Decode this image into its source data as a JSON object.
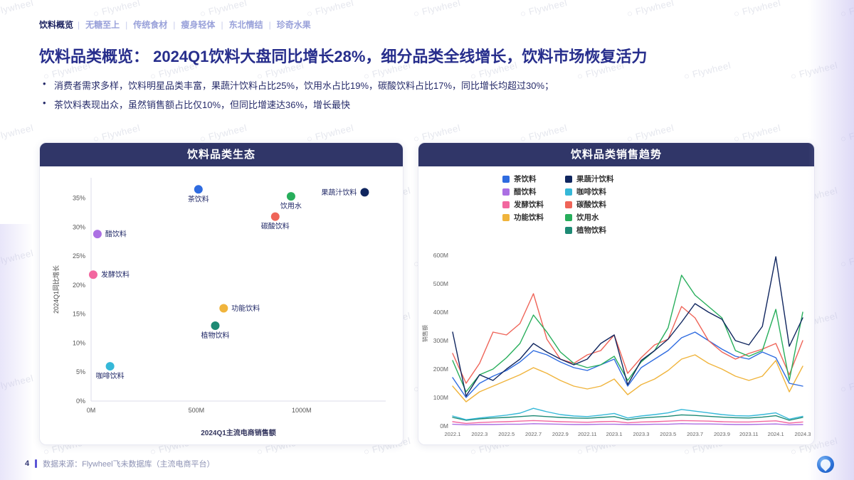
{
  "nav": {
    "active": "饮料概览",
    "items": [
      "无糖至上",
      "传统食材",
      "瘦身轻体",
      "东北情结",
      "珍奇水果"
    ]
  },
  "title": "饮料品类概览： 2024Q1饮料大盘同比增长28%，细分品类全线增长，饮料市场恢复活力",
  "bullets": [
    "消费者需求多样，饮料明星品类丰富，果蔬汁饮料占比25%，饮用水占比19%，碳酸饮料占比17%，同比增长均超过30%；",
    "茶饮料表现出众，虽然销售额占比仅10%，但同比增速达36%，增长最快"
  ],
  "watermark": "Flywheel",
  "footer": {
    "page": "4",
    "source": "数据来源：Flywheel飞未数据库（主流电商平台）"
  },
  "chart_data": [
    {
      "type": "scatter",
      "title": "饮料品类生态",
      "xlabel": "2024Q1主流电商销售额",
      "ylabel": "2024Q1同比增长",
      "xlim": [
        0,
        1400
      ],
      "ylim": [
        0,
        38.5
      ],
      "x_ticks": [
        "0M",
        "500M",
        "1000M"
      ],
      "x_tick_values": [
        0,
        500,
        1000
      ],
      "y_ticks": [
        "0%",
        "5%",
        "10%",
        "15%",
        "20%",
        "25%",
        "30%",
        "35%"
      ],
      "y_tick_values": [
        0,
        5,
        10,
        15,
        20,
        25,
        30,
        35
      ],
      "points": [
        {
          "name": "茶饮料",
          "x": 510,
          "y": 36.5,
          "color": "#2e6be0",
          "label_pos": "below"
        },
        {
          "name": "果蔬汁饮料",
          "x": 1300,
          "y": 36.0,
          "color": "#10265f",
          "label_pos": "left"
        },
        {
          "name": "饮用水",
          "x": 950,
          "y": 35.3,
          "color": "#27ae5b",
          "label_pos": "below"
        },
        {
          "name": "碳酸饮料",
          "x": 875,
          "y": 31.8,
          "color": "#ef6458",
          "label_pos": "below"
        },
        {
          "name": "醋饮料",
          "x": 30,
          "y": 28.8,
          "color": "#ab6fe3",
          "label_pos": "right"
        },
        {
          "name": "发酵饮料",
          "x": 10,
          "y": 21.8,
          "color": "#f2679f",
          "label_pos": "right"
        },
        {
          "name": "功能饮料",
          "x": 630,
          "y": 16.0,
          "color": "#f0b43c",
          "label_pos": "right"
        },
        {
          "name": "植物饮料",
          "x": 590,
          "y": 13.0,
          "color": "#1d8a74",
          "label_pos": "below"
        },
        {
          "name": "咖啡饮料",
          "x": 90,
          "y": 6.0,
          "color": "#35b8d8",
          "label_pos": "below"
        }
      ]
    },
    {
      "type": "line",
      "title": "饮料品类销售趋势",
      "ylabel": "销售额",
      "ylim": [
        0,
        650
      ],
      "y_ticks": [
        "0M",
        "100M",
        "200M",
        "300M",
        "400M",
        "500M",
        "600M"
      ],
      "y_tick_values": [
        0,
        100,
        200,
        300,
        400,
        500,
        600
      ],
      "x_tick_step": 2,
      "x": [
        "2022.1",
        "2022.2",
        "2022.3",
        "2022.4",
        "2022.5",
        "2022.6",
        "2022.7",
        "2022.8",
        "2022.9",
        "2022.10",
        "2022.11",
        "2022.12",
        "2023.1",
        "2023.2",
        "2023.3",
        "2023.4",
        "2023.5",
        "2023.6",
        "2023.7",
        "2023.8",
        "2023.9",
        "2023.10",
        "2023.11",
        "2023.12",
        "2024.1",
        "2024.2",
        "2024.3"
      ],
      "legend_columns": [
        [
          "茶饮料",
          "醋饮料",
          "发酵饮料",
          "功能饮料"
        ],
        [
          "果蔬汁饮料",
          "咖啡饮料",
          "碳酸饮料",
          "饮用水",
          "植物饮料"
        ]
      ],
      "series": [
        {
          "name": "醋饮料",
          "color": "#ab6fe3",
          "values": [
            6,
            4,
            5,
            5,
            6,
            6,
            8,
            7,
            6,
            5,
            5,
            6,
            6,
            5,
            5,
            6,
            6,
            8,
            7,
            7,
            6,
            5,
            5,
            6,
            7,
            4,
            5
          ]
        },
        {
          "name": "发酵饮料",
          "color": "#f2679f",
          "values": [
            15,
            9,
            12,
            14,
            15,
            17,
            19,
            17,
            15,
            14,
            13,
            15,
            16,
            11,
            14,
            15,
            17,
            19,
            18,
            17,
            15,
            14,
            14,
            16,
            18,
            10,
            14
          ]
        },
        {
          "name": "植物饮料",
          "color": "#1d8a74",
          "values": [
            30,
            20,
            25,
            28,
            30,
            33,
            36,
            33,
            30,
            28,
            27,
            30,
            33,
            22,
            28,
            31,
            34,
            39,
            37,
            34,
            31,
            29,
            28,
            31,
            36,
            20,
            30
          ]
        },
        {
          "name": "咖啡饮料",
          "color": "#35b8d8",
          "values": [
            35,
            22,
            28,
            33,
            38,
            45,
            62,
            50,
            40,
            35,
            33,
            38,
            44,
            28,
            35,
            40,
            46,
            58,
            52,
            46,
            40,
            36,
            35,
            40,
            46,
            24,
            34
          ]
        },
        {
          "name": "功能饮料",
          "color": "#f0b43c",
          "values": [
            140,
            85,
            120,
            140,
            160,
            180,
            205,
            185,
            160,
            140,
            130,
            140,
            165,
            110,
            145,
            165,
            195,
            235,
            250,
            220,
            200,
            175,
            160,
            175,
            230,
            120,
            210
          ]
        },
        {
          "name": "茶饮料",
          "color": "#2e6be0",
          "values": [
            170,
            100,
            150,
            175,
            195,
            225,
            265,
            250,
            225,
            205,
            195,
            215,
            235,
            140,
            205,
            235,
            265,
            310,
            330,
            300,
            270,
            245,
            235,
            260,
            240,
            150,
            140
          ]
        },
        {
          "name": "碳酸饮料",
          "color": "#ef6458",
          "values": [
            255,
            150,
            220,
            330,
            320,
            360,
            465,
            305,
            235,
            220,
            250,
            265,
            320,
            185,
            240,
            285,
            305,
            420,
            380,
            300,
            260,
            235,
            255,
            270,
            290,
            180,
            300
          ]
        },
        {
          "name": "饮用水",
          "color": "#27ae5b",
          "values": [
            230,
            120,
            180,
            200,
            240,
            290,
            390,
            330,
            260,
            220,
            205,
            215,
            245,
            160,
            225,
            265,
            345,
            530,
            460,
            420,
            380,
            265,
            245,
            265,
            410,
            160,
            400
          ]
        },
        {
          "name": "果蔬汁饮料",
          "color": "#10265f",
          "values": [
            330,
            105,
            180,
            160,
            200,
            235,
            290,
            260,
            235,
            215,
            235,
            290,
            320,
            145,
            230,
            265,
            305,
            365,
            430,
            400,
            375,
            300,
            285,
            350,
            595,
            280,
            380
          ]
        }
      ]
    }
  ]
}
